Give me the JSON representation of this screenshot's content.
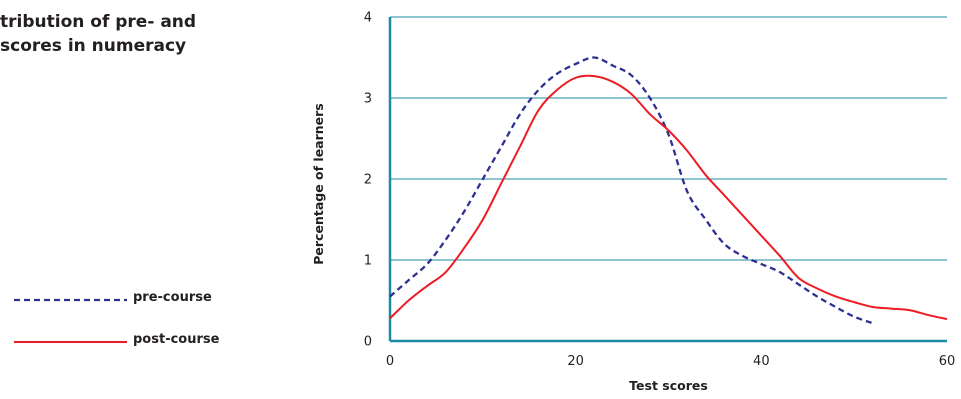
{
  "title_lines": [
    "tribution of pre- and",
    "scores in numeracy"
  ],
  "chart_data": {
    "type": "line",
    "title": "",
    "xlabel": "Test scores",
    "ylabel": "Percentage of learners",
    "xlim": [
      0,
      60
    ],
    "ylim": [
      0,
      4
    ],
    "xticks": [
      0,
      20,
      40,
      60
    ],
    "yticks": [
      0,
      1,
      2,
      3,
      4
    ],
    "grid": "horizontal",
    "legend_position": "left",
    "series": [
      {
        "name": "pre-course",
        "style": "dashed",
        "color": "#2e3192",
        "x": [
          0,
          2,
          4,
          6,
          8,
          10,
          12,
          14,
          16,
          18,
          20,
          22,
          24,
          26,
          28,
          30,
          32,
          34,
          36,
          38,
          40,
          42,
          44,
          46,
          48,
          50,
          52
        ],
        "y": [
          0.55,
          0.75,
          0.95,
          1.25,
          1.6,
          2.0,
          2.4,
          2.8,
          3.1,
          3.3,
          3.42,
          3.5,
          3.4,
          3.28,
          3.0,
          2.55,
          1.85,
          1.5,
          1.2,
          1.05,
          0.95,
          0.85,
          0.7,
          0.55,
          0.42,
          0.3,
          0.22
        ]
      },
      {
        "name": "post-course",
        "style": "solid",
        "color": "#ed1c24",
        "x": [
          0,
          2,
          4,
          6,
          8,
          10,
          12,
          14,
          16,
          18,
          20,
          22,
          24,
          26,
          28,
          30,
          32,
          34,
          36,
          38,
          40,
          42,
          44,
          46,
          48,
          50,
          52,
          54,
          56,
          58,
          60
        ],
        "y": [
          0.28,
          0.5,
          0.68,
          0.85,
          1.15,
          1.5,
          1.95,
          2.4,
          2.85,
          3.1,
          3.25,
          3.27,
          3.2,
          3.05,
          2.8,
          2.6,
          2.35,
          2.05,
          1.8,
          1.55,
          1.3,
          1.05,
          0.78,
          0.65,
          0.55,
          0.48,
          0.42,
          0.4,
          0.38,
          0.32,
          0.27
        ]
      }
    ]
  }
}
